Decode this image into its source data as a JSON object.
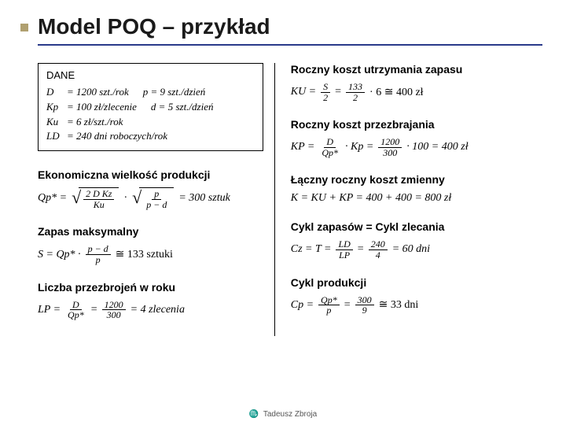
{
  "title": "Model POQ – przykład",
  "dane": {
    "heading": "DANE",
    "rows": [
      {
        "sym": "D",
        "val": "= 1200 szt./rok",
        "right": "p = 9 szt./dzień"
      },
      {
        "sym": "Kp",
        "val": "= 100 zł/zlecenie",
        "right": "d = 5 szt./dzień"
      },
      {
        "sym": "Ku",
        "val": "= 6 zł/szt./rok",
        "right": ""
      },
      {
        "sym": "LD",
        "val": "= 240 dni roboczych/rok",
        "right": ""
      }
    ]
  },
  "left": {
    "s1": {
      "head": "Ekonomiczna wielkość produkcji",
      "lhs": "Qp* =",
      "frac1_num": "2 D Kz",
      "frac1_den": "Ku",
      "frac2_num": "p",
      "frac2_den": "p − d",
      "rhs": "= 300 sztuk"
    },
    "s2": {
      "head": "Zapas maksymalny",
      "lhs": "S = Qp* ·",
      "frac_num": "p − d",
      "frac_den": "p",
      "rhs": "≅ 133 sztuki"
    },
    "s3": {
      "head": "Liczba przezbrojeń w roku",
      "lhs": "LP =",
      "f1n": "D",
      "f1d": "Qp*",
      "f2n": "1200",
      "f2d": "300",
      "rhs": "= 4 zlecenia"
    }
  },
  "right": {
    "s1": {
      "head": "Roczny koszt utrzymania zapasu",
      "lhs": "KU =",
      "f1n": "S",
      "f1d": "2",
      "f2n": "133",
      "f2d": "2",
      "mid": "· 6 ≅ 400 zł"
    },
    "s2": {
      "head": "Roczny koszt przezbrajania",
      "lhs": "KP =",
      "f1n": "D",
      "f1d": "Qp*",
      "mid1": "· Kp =",
      "f2n": "1200",
      "f2d": "300",
      "mid2": "· 100 = 400 zł"
    },
    "s3": {
      "head": "Łączny roczny koszt zmienny",
      "expr": "K = KU + KP = 400 + 400 = 800 zł"
    },
    "s4": {
      "head": "Cykl zapasów = Cykl zlecania",
      "lhs": "Cz = T =",
      "f1n": "LD",
      "f1d": "LP",
      "f2n": "240",
      "f2d": "4",
      "rhs": "= 60 dni"
    },
    "s5": {
      "head": "Cykl produkcji",
      "lhs": "Cp =",
      "f1n": "Qp*",
      "f1d": "p",
      "f2n": "300",
      "f2d": "9",
      "rhs": "≅ 33 dni"
    }
  },
  "footer": "Tadeusz Zbroja"
}
